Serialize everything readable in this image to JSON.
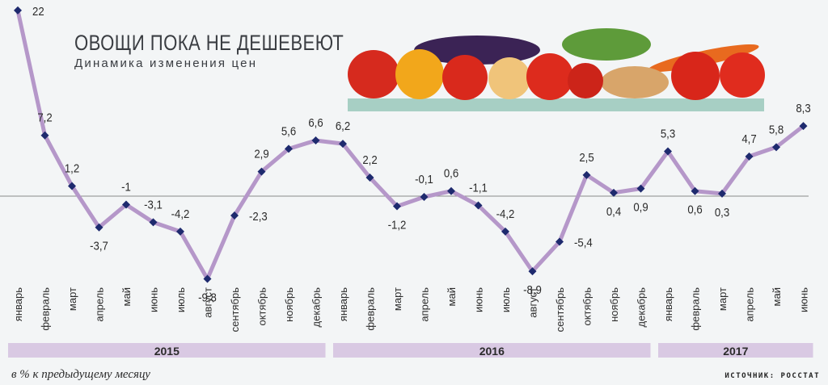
{
  "header": {
    "title": "ОВОЩИ ПОКА НЕ ДЕШЕВЕЮТ",
    "subtitle": "Динамика изменения цен"
  },
  "footnote": "в % к предыдущему месяцу",
  "source": "ИСТОЧНИК: РОССТАТ",
  "colors": {
    "line": "#b597c9",
    "marker": "#1e2a6e",
    "year_band": "#d9c9e3",
    "shelf": "#a7cfc4",
    "zero_line": "#8a8a8a"
  },
  "illustration": {
    "icon": "vegetables-illustration-icon"
  },
  "chart_data": {
    "type": "line",
    "title": "ОВОЩИ ПОКА НЕ ДЕШЕВЕЮТ",
    "subtitle": "Динамика изменения цен",
    "ylabel": "в % к предыдущему месяцу",
    "grid": false,
    "x": [
      "январь",
      "февраль",
      "март",
      "апрель",
      "май",
      "июнь",
      "июль",
      "август",
      "сентябрь",
      "октябрь",
      "ноябрь",
      "декабрь",
      "январь",
      "февраль",
      "март",
      "апрель",
      "май",
      "июнь",
      "июль",
      "август",
      "сентябрь",
      "октябрь",
      "ноябрь",
      "декабрь",
      "январь",
      "февраль",
      "март",
      "апрель",
      "май",
      "июнь"
    ],
    "years": [
      {
        "label": "2015",
        "start": 0,
        "end": 11
      },
      {
        "label": "2016",
        "start": 12,
        "end": 23
      },
      {
        "label": "2017",
        "start": 24,
        "end": 29
      }
    ],
    "series": [
      {
        "values": [
          22,
          7.2,
          1.2,
          -3.7,
          -1,
          -3.1,
          -4.2,
          -9.8,
          -2.3,
          2.9,
          5.6,
          6.6,
          6.2,
          2.2,
          -1.2,
          -0.1,
          0.6,
          -1.1,
          -4.2,
          -8.9,
          -5.4,
          2.5,
          0.4,
          0.9,
          5.3,
          0.6,
          0.3,
          4.7,
          5.8,
          8.3
        ],
        "labels": [
          "22",
          "7,2",
          "1,2",
          "-3,7",
          "-1",
          "-3,1",
          "-4,2",
          "-9,8",
          "-2,3",
          "2,9",
          "5,6",
          "6,6",
          "6,2",
          "2,2",
          "-1,2",
          "-0,1",
          "0,6",
          "-1,1",
          "-4,2",
          "-8,9",
          "-5,4",
          "2,5",
          "0,4",
          "0,9",
          "5,3",
          "0,6",
          "0,3",
          "4,7",
          "5,8",
          "8,3"
        ],
        "label_pos": [
          "right",
          "above",
          "above",
          "below",
          "above",
          "above",
          "above",
          "below",
          "right",
          "above",
          "above",
          "above",
          "above",
          "above",
          "below",
          "above",
          "above",
          "above",
          "above",
          "below",
          "right",
          "above",
          "below",
          "below",
          "above",
          "below",
          "below",
          "above",
          "above",
          "above"
        ]
      }
    ]
  }
}
